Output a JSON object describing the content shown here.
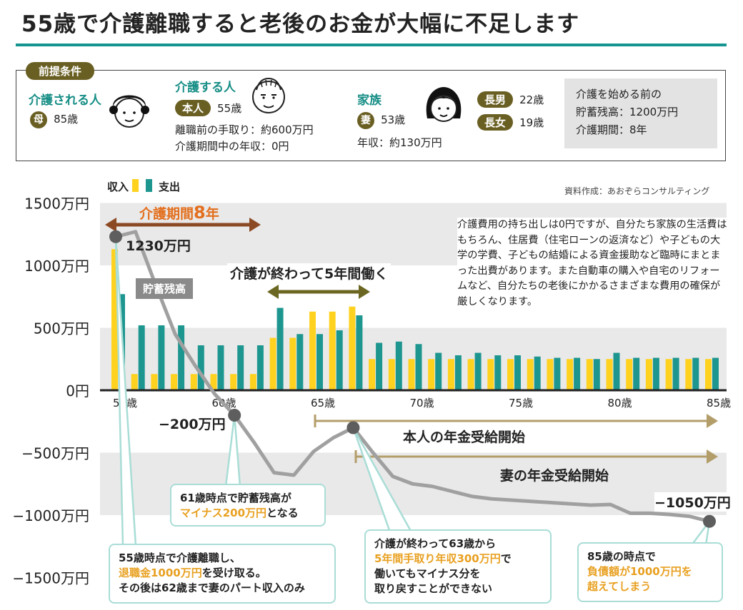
{
  "title": "55歳で介護離職すると老後のお金が大幅に不足します",
  "premise": {
    "tag": "前提条件",
    "cared": {
      "heading": "介護される人",
      "role": "母",
      "age": "85歳"
    },
    "carer": {
      "heading": "介護する人",
      "role": "本人",
      "age": "55歳",
      "line1": "離職前の手取り：約600万円",
      "line2": "介護期間中の年収：0円"
    },
    "family": {
      "heading": "家族",
      "role": "妻",
      "age": "53歳",
      "income": "年収：約130万円",
      "son_role": "長男",
      "son_age": "22歳",
      "daughter_role": "長女",
      "daughter_age": "19歳"
    },
    "summary": {
      "line1": "介護を始める前の",
      "line2": "貯蓄残高：1200万円",
      "line3": "介護期間：8年"
    }
  },
  "legend": {
    "income": "収入",
    "expense": "支出"
  },
  "source": "資料作成：あおぞらコンサルティング",
  "colors": {
    "income": "#ffd21f",
    "expense": "#1e9690",
    "savings": "#9a9a9a",
    "arrow_brown": "#8c4a24",
    "arrow_olive": "#6b6722",
    "arrow_tan": "#b39e6a"
  },
  "annotations": {
    "care_period_prefix": "介護期間",
    "care_period_num": "8",
    "care_period_suffix": "年",
    "work_5_years": "介護が終わって5年間働く",
    "pension_self": "本人の年金受給開始",
    "pension_wife": "妻の年金受給開始",
    "savings_label": "貯蓄残高",
    "start_value": "1230万円",
    "min_value": "−200万円",
    "end_value": "−1050万円"
  },
  "note": "介護費用の持ち出しは0円ですが、自分たち家族の生活費はもちろん、住居費（住宅ローンの返済など）や子どもの大学の学費、子どもの結婚による資金援助など臨時にまとまった出費があります。また自動車の購入や自宅のリフォームなど、自分たちの老後にかかるさまざまな費用の確保が厳しくなります。",
  "callouts": {
    "c1_a": "55歳時点で介護離職し、",
    "c1_b": "退職金1000万円",
    "c1_c": "を受け取る。",
    "c1_d": "その後は62歳まで妻のパート収入のみ",
    "c2_a": "61歳時点で貯蓄残高が",
    "c2_b": "マイナス200万円",
    "c2_c": "となる",
    "c3_a": "介護が終わって63歳から",
    "c3_b": "5年間手取り年収300万円",
    "c3_c": "で",
    "c3_d": "働いてもマイナス分を",
    "c3_e": "取り戻すことができない",
    "c4_a": "85歳の時点で",
    "c4_b": "負債額が1000万円を",
    "c4_c": "超えてしまう"
  },
  "chart_data": {
    "type": "bar",
    "title": "",
    "xlabel": "",
    "ylabel": "",
    "ylim": [
      -1500,
      1500
    ],
    "y_ticks": [
      1500,
      1000,
      500,
      0,
      -500,
      -1000,
      -1500
    ],
    "y_tick_labels": [
      "1500万円",
      "1000万円",
      "500万円",
      "0円",
      "−500万円",
      "−1000万円",
      "−1500万円"
    ],
    "x_ticks": [
      55,
      60,
      65,
      70,
      75,
      80,
      85
    ],
    "x_tick_labels": [
      "55歳",
      "60歳",
      "65歳",
      "70歳",
      "75歳",
      "80歳",
      "85歳"
    ],
    "x": [
      55,
      56,
      57,
      58,
      59,
      60,
      61,
      62,
      63,
      64,
      65,
      66,
      67,
      68,
      69,
      70,
      71,
      72,
      73,
      74,
      75,
      76,
      77,
      78,
      79,
      80,
      81,
      82,
      83,
      84,
      85
    ],
    "legend_position": "top-left",
    "series": [
      {
        "name": "収入",
        "values": [
          1130,
          130,
          130,
          130,
          130,
          130,
          130,
          130,
          420,
          420,
          630,
          630,
          670,
          250,
          250,
          250,
          250,
          250,
          250,
          250,
          250,
          250,
          250,
          250,
          250,
          250,
          250,
          250,
          250,
          250,
          250
        ]
      },
      {
        "name": "支出",
        "values": [
          770,
          520,
          520,
          520,
          360,
          360,
          360,
          360,
          660,
          450,
          450,
          480,
          600,
          380,
          390,
          370,
          300,
          280,
          300,
          280,
          280,
          270,
          260,
          260,
          250,
          300,
          260,
          260,
          260,
          260,
          260
        ]
      },
      {
        "name": "貯蓄残高",
        "type": "line",
        "values": [
          1230,
          1270,
          850,
          450,
          200,
          -30,
          -200,
          -420,
          -660,
          -680,
          -490,
          -380,
          -300,
          -500,
          -690,
          -750,
          -770,
          -810,
          -850,
          -870,
          -880,
          -890,
          -900,
          -910,
          -920,
          -915,
          -985,
          -985,
          -995,
          -1010,
          -1050
        ]
      }
    ]
  }
}
